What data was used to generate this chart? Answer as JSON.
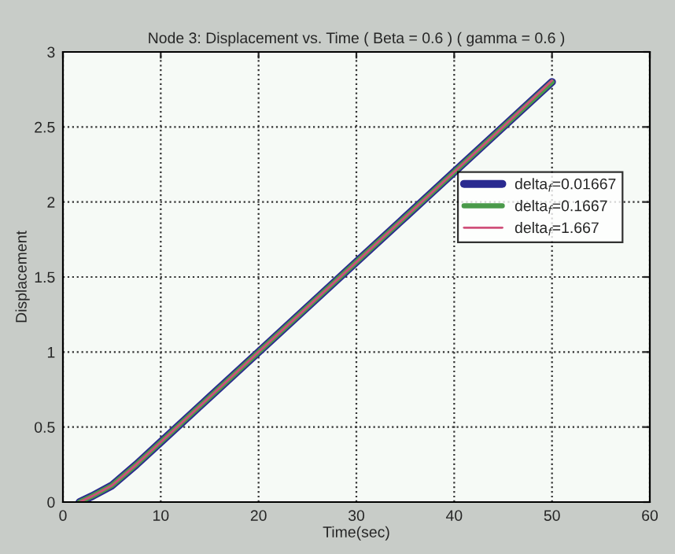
{
  "chart_data": {
    "type": "line",
    "title": "Node 3: Displacement vs. Time ( Beta = 0.6 ) ( gamma = 0.6 )",
    "xlabel": "Time(sec)",
    "ylabel": "Displacement",
    "x": [
      1.7,
      3,
      5,
      7.5,
      10,
      15,
      20,
      25,
      30,
      35,
      40,
      45,
      50
    ],
    "series": [
      {
        "name": "delta$_{f}$=0.01667",
        "color": "#2a2a90",
        "values": [
          0,
          0.04,
          0.11,
          0.25,
          0.4,
          0.7,
          1.0,
          1.3,
          1.6,
          1.9,
          2.2,
          2.5,
          2.8
        ]
      },
      {
        "name": "delta$_{f}$=0.1667",
        "color": "#4a9a4a",
        "values": [
          0,
          0.04,
          0.11,
          0.25,
          0.4,
          0.7,
          1.0,
          1.3,
          1.6,
          1.9,
          2.2,
          2.5,
          2.8
        ]
      },
      {
        "name": "delta$_{f}$=1.667",
        "color": "#d0507a",
        "values": [
          0,
          0.04,
          0.11,
          0.25,
          0.4,
          0.7,
          1.0,
          1.3,
          1.6,
          1.9,
          2.2,
          2.5,
          2.81
        ]
      }
    ],
    "xlim": [
      0,
      60
    ],
    "xticks": [
      0,
      10,
      20,
      30,
      40,
      50,
      60
    ],
    "ylim": [
      0,
      3
    ],
    "yticks": [
      0,
      0.5,
      1,
      1.5,
      2,
      2.5,
      3
    ],
    "grid": true,
    "legend": "right",
    "line_style": "solid",
    "marker": "none"
  }
}
